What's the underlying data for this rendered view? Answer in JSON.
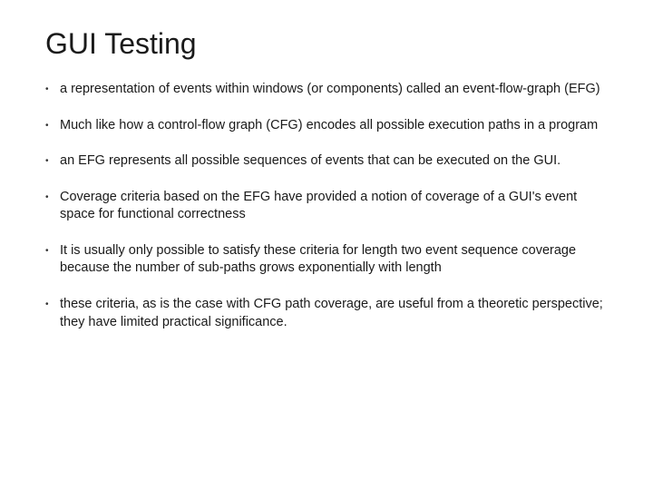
{
  "slide": {
    "title": "GUI Testing",
    "title_fontsize": 32,
    "title_color": "#1a1a1a",
    "body_fontsize": 14.5,
    "body_color": "#1a1a1a",
    "background_color": "#ffffff",
    "bullet_glyph": "•",
    "bullets": [
      {
        "text": "a representation of events within windows (or components) called an event-flow-graph (EFG)"
      },
      {
        "text": "Much like how a control-flow graph (CFG) encodes all possible execution paths in a program"
      },
      {
        "text": " an EFG represents all possible sequences of events that can be executed on the GUI."
      },
      {
        "text": " Coverage criteria based on the EFG have provided a notion of coverage of a GUI's event space for functional correctness"
      },
      {
        "text": "It is usually only possible to satisfy these criteria for length two event sequence coverage because the number of sub-paths grows exponentially with length"
      },
      {
        "text": "these criteria, as is the case with CFG path coverage, are useful from a theoretic perspective; they have limited practical significance."
      }
    ]
  }
}
